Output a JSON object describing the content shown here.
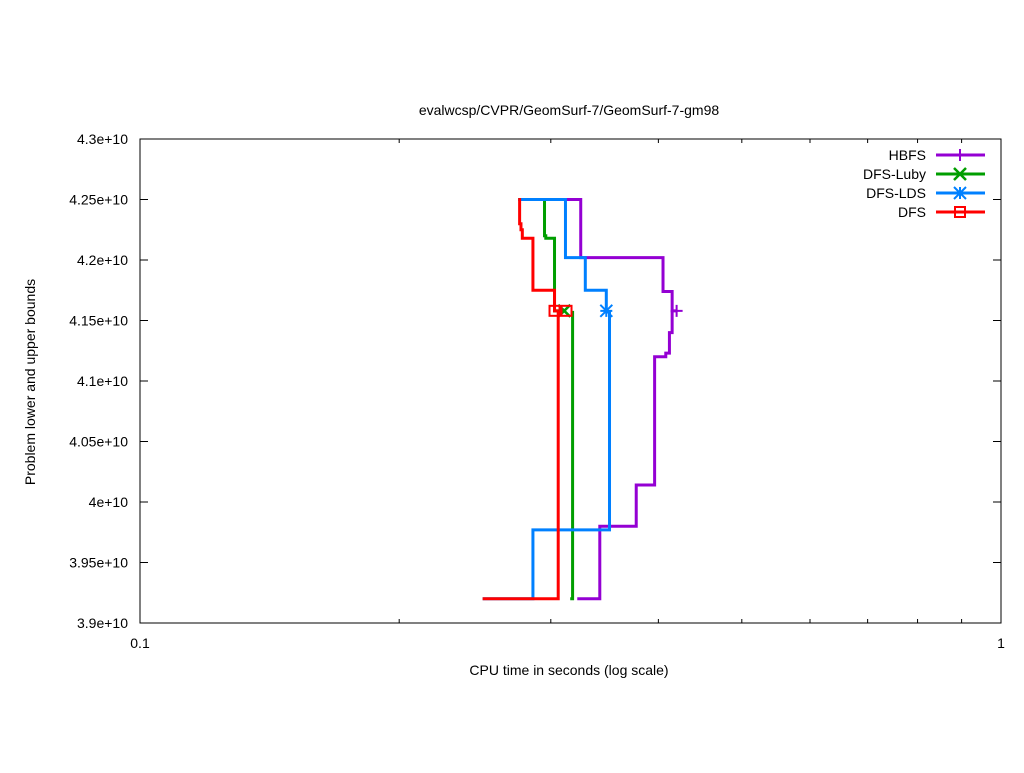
{
  "chart_data": {
    "type": "line",
    "title": "evalwcsp/CVPR/GeomSurf-7/GeomSurf-7-gm98",
    "xlabel": "CPU time in seconds (log scale)",
    "ylabel": "Problem lower and upper bounds",
    "x_scale": "log",
    "xlim": [
      0.1,
      1
    ],
    "ylim": [
      39000000000,
      43000000000
    ],
    "x_ticks": [
      0.1,
      1
    ],
    "x_tick_labels": [
      "0.1",
      "1"
    ],
    "x_minor_ticks": [
      0.2,
      0.3,
      0.4,
      0.5,
      0.6,
      0.7,
      0.8,
      0.9
    ],
    "y_ticks": [
      39000000000,
      39500000000,
      40000000000,
      40500000000,
      41000000000,
      41500000000,
      42000000000,
      42500000000,
      43000000000
    ],
    "y_tick_labels": [
      "3.9e+10",
      "3.95e+10",
      "4e+10",
      "4.05e+10",
      "4.1e+10",
      "4.15e+10",
      "4.2e+10",
      "4.25e+10",
      "4.3e+10"
    ],
    "grid": false,
    "legend_position": "top-right",
    "series": [
      {
        "name": "HBFS",
        "color": "#9400d3",
        "marker": "plus",
        "upper": {
          "x": [
            0.275,
            0.325,
            0.405,
            0.415,
            0.415,
            0.42
          ],
          "y": [
            42500000000,
            42020000000,
            41740000000,
            41580000000,
            41580000000,
            41580000000
          ]
        },
        "lower": {
          "x": [
            0.322,
            0.342,
            0.377,
            0.396,
            0.408,
            0.412,
            0.415
          ],
          "y": [
            39200000000,
            39800000000,
            40140000000,
            41200000000,
            41230000000,
            41400000000,
            41580000000
          ]
        },
        "final_point": {
          "x": 0.42,
          "y": 41580000000
        }
      },
      {
        "name": "DFS-Luby",
        "color": "#009e00",
        "marker": "x",
        "upper": {
          "x": [
            0.275,
            0.295,
            0.296,
            0.303,
            0.303,
            0.311
          ],
          "y": [
            42500000000,
            42200000000,
            42180000000,
            41750000000,
            41580000000,
            41580000000
          ]
        },
        "lower": {
          "x": [
            0.316,
            0.318
          ],
          "y": [
            39200000000,
            41580000000
          ]
        },
        "final_point": {
          "x": 0.311,
          "y": 41580000000
        }
      },
      {
        "name": "DFS-LDS",
        "color": "#0080ff",
        "marker": "star",
        "upper": {
          "x": [
            0.275,
            0.312,
            0.329,
            0.348,
            0.348
          ],
          "y": [
            42500000000,
            42020000000,
            41750000000,
            41580000000,
            41580000000
          ]
        },
        "lower": {
          "x": [
            0.25,
            0.286,
            0.351,
            0.351
          ],
          "y": [
            39200000000,
            39770000000,
            41580000000,
            41580000000
          ]
        },
        "final_point": {
          "x": 0.348,
          "y": 41580000000
        }
      },
      {
        "name": "DFS",
        "color": "#ff0000",
        "marker": "square",
        "upper": {
          "x": [
            0.275,
            0.276,
            0.277,
            0.278,
            0.286,
            0.303,
            0.306
          ],
          "y": [
            42500000000,
            42300000000,
            42250000000,
            42180000000,
            41750000000,
            41580000000,
            41580000000
          ]
        },
        "lower": {
          "x": [
            0.25,
            0.298,
            0.306
          ],
          "y": [
            39200000000,
            39200000000,
            41580000000
          ]
        },
        "final_point": {
          "x": 0.303,
          "y": 41580000000
        }
      }
    ]
  }
}
